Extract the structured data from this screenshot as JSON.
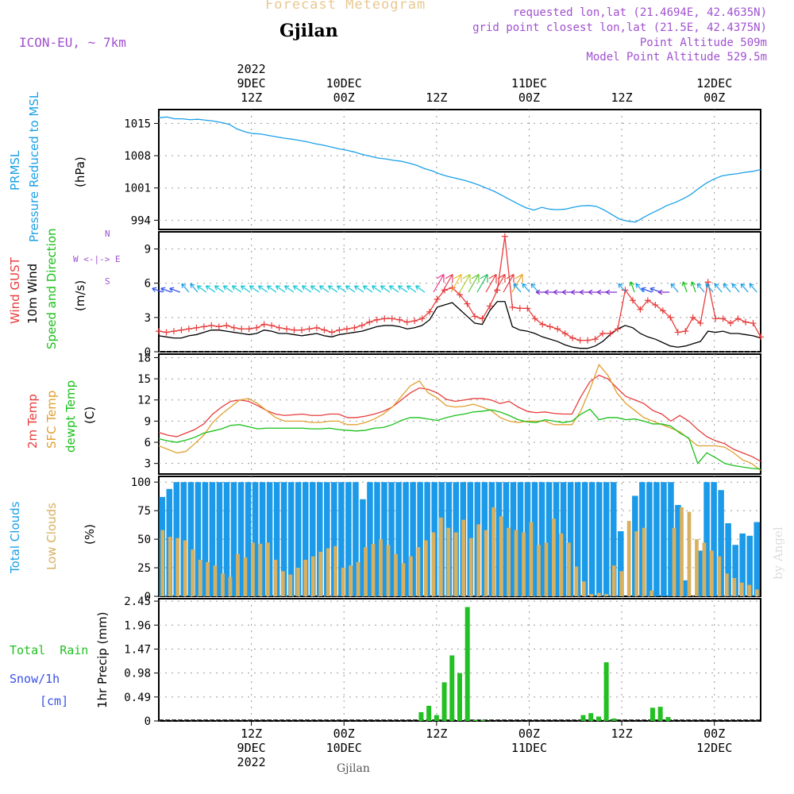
{
  "header": {
    "product_title": "Forecast Meteogram",
    "location": "Gjilan",
    "model": "ICON-EU, ~ 7km",
    "requested": "requested lon,lat (21.4694E, 42.4635N)",
    "grid_point": "grid point closest lon,lat (21.5E, 42.4375N)",
    "point_altitude": "Point Altitude 509m",
    "model_altitude": "Model Point Altitude 529.5m",
    "footer_location": "Gjilan",
    "watermark": "by Angel"
  },
  "colors": {
    "pressure": "#1aa0e8",
    "gust": "#e83c3c",
    "wind": "#000000",
    "wind_dir": "#19c019",
    "temp2m": "#e83c3c",
    "sfc_temp": "#e0a030",
    "dewpt": "#19c019",
    "total_clouds": "#1a9ae8",
    "low_clouds": "#d8b060",
    "rain": "#22c022",
    "snow": "#3a50e8",
    "meta": "#a050d0",
    "title_faint": "#e8c890"
  },
  "time_axis": {
    "top_labels": [
      {
        "t": 12,
        "lines": [
          "2022",
          "9DEC",
          "12Z"
        ]
      },
      {
        "t": 24,
        "lines": [
          "10DEC",
          "00Z"
        ]
      },
      {
        "t": 36,
        "lines": [
          "12Z"
        ]
      },
      {
        "t": 48,
        "lines": [
          "11DEC",
          "00Z"
        ]
      },
      {
        "t": 60,
        "lines": [
          "12Z"
        ]
      },
      {
        "t": 72,
        "lines": [
          "12DEC",
          "00Z"
        ]
      }
    ],
    "bottom_labels": [
      {
        "t": 12,
        "lines": [
          "12Z",
          "9DEC",
          "2022"
        ]
      },
      {
        "t": 24,
        "lines": [
          "00Z",
          "10DEC"
        ]
      },
      {
        "t": 36,
        "lines": [
          "12Z"
        ]
      },
      {
        "t": 48,
        "lines": [
          "00Z",
          "11DEC"
        ]
      },
      {
        "t": 60,
        "lines": [
          "12Z"
        ]
      },
      {
        "t": 72,
        "lines": [
          "00Z",
          "12DEC"
        ]
      }
    ]
  },
  "panels": {
    "pressure": {
      "label_lines": [
        "PRMSL",
        "Pressure Reduced to MSL"
      ],
      "unit": "(hPa)",
      "ticks": [
        "1015",
        "1008",
        "1001",
        "994"
      ]
    },
    "wind": {
      "label_gust": "Wind GUST",
      "label_wind": "10m Wind",
      "label_dir": "Speed and Direction",
      "unit": "(m/s)",
      "ticks": [
        "9",
        "6",
        "3",
        "0"
      ],
      "compass": [
        "N",
        "W <-|-> E",
        "S"
      ]
    },
    "temp": {
      "label_2m": "2m Temp",
      "label_sfc": "SFC Temp",
      "label_dew": "dewpt Temp",
      "unit": "(C)",
      "ticks": [
        "18",
        "15",
        "12",
        "9",
        "6",
        "3"
      ]
    },
    "clouds": {
      "label_total": "Total Clouds",
      "label_low": "Low Clouds",
      "unit": "(%)",
      "ticks": [
        "100",
        "75",
        "50",
        "25",
        "0"
      ]
    },
    "precip": {
      "label_total": "Total  Rain",
      "label_snow": "Snow/1h",
      "label_cm": "[cm]",
      "label_axis": "1hr Precip (mm)",
      "ticks": [
        "2.45",
        "1.96",
        "1.47",
        "0.98",
        "0.49",
        "0"
      ]
    }
  },
  "chart_data": {
    "type": "line",
    "x_unit": "hours from 9DEC 00Z 2022",
    "x_range": [
      0,
      78
    ],
    "pressure_hpa": {
      "ylim": [
        992,
        1018
      ],
      "x": [
        0,
        1,
        2,
        3,
        4,
        5,
        6,
        7,
        8,
        9,
        10,
        11,
        12,
        13,
        14,
        15,
        16,
        17,
        18,
        19,
        20,
        21,
        22,
        23,
        24,
        25,
        26,
        27,
        28,
        29,
        30,
        31,
        32,
        33,
        34,
        35,
        36,
        37,
        38,
        39,
        40,
        41,
        42,
        43,
        44,
        45,
        46,
        47,
        48,
        49,
        50,
        51,
        52,
        53,
        54,
        55,
        56,
        57,
        58,
        59,
        60,
        61,
        62,
        63,
        64,
        65,
        66,
        67,
        68,
        69,
        70,
        71,
        72,
        73,
        74,
        75,
        76,
        77
      ],
      "y": [
        1016.2,
        1016.4,
        1016.0,
        1016.0,
        1015.8,
        1015.9,
        1015.7,
        1015.5,
        1015.2,
        1014.8,
        1013.8,
        1013.2,
        1012.8,
        1012.7,
        1012.4,
        1012.1,
        1011.8,
        1011.6,
        1011.3,
        1011.0,
        1010.6,
        1010.3,
        1009.9,
        1009.5,
        1009.2,
        1008.8,
        1008.3,
        1007.9,
        1007.5,
        1007.3,
        1007.0,
        1006.8,
        1006.4,
        1005.9,
        1005.2,
        1004.7,
        1004.0,
        1003.5,
        1003.1,
        1002.7,
        1002.2,
        1001.6,
        1000.9,
        1000.2,
        999.3,
        998.4,
        997.5,
        996.7,
        996.2,
        996.8,
        996.4,
        996.3,
        996.4,
        996.8,
        997.1,
        997.2,
        997.0,
        996.2,
        995.2,
        994.2,
        993.8,
        993.6,
        994.6,
        995.5,
        996.3,
        997.2,
        997.8,
        998.6,
        999.5,
        1000.8,
        1002.0,
        1002.9,
        1003.6,
        1003.9,
        1004.1,
        1004.4,
        1004.6,
        1005.0
      ]
    },
    "wind_ms": {
      "ylim": [
        0,
        10.5
      ],
      "gust": [
        1.8,
        1.7,
        1.8,
        1.9,
        2.0,
        2.1,
        2.2,
        2.3,
        2.2,
        2.3,
        2.1,
        2.0,
        2.0,
        2.1,
        2.4,
        2.3,
        2.1,
        2.0,
        1.9,
        1.9,
        2.0,
        2.1,
        1.9,
        1.7,
        1.9,
        2.0,
        2.1,
        2.3,
        2.6,
        2.8,
        2.9,
        2.9,
        2.8,
        2.6,
        2.7,
        2.9,
        3.5,
        4.6,
        5.4,
        5.6,
        5.0,
        4.2,
        3.1,
        2.9,
        4.0,
        5.4,
        10.1,
        3.9,
        3.8,
        3.8,
        2.9,
        2.4,
        2.2,
        2.0,
        1.6,
        1.2,
        1.0,
        1.0,
        1.1,
        1.6,
        1.6,
        2.0,
        5.4,
        4.5,
        3.7,
        4.5,
        4.1,
        3.6,
        3.0,
        1.7,
        1.8,
        3.0,
        2.5,
        6.1,
        2.9,
        2.9,
        2.5,
        2.9,
        2.6,
        2.5,
        1.3
      ],
      "wind": [
        1.4,
        1.3,
        1.2,
        1.2,
        1.4,
        1.5,
        1.7,
        1.9,
        1.9,
        1.8,
        1.7,
        1.6,
        1.5,
        1.6,
        1.9,
        1.8,
        1.6,
        1.6,
        1.5,
        1.4,
        1.5,
        1.6,
        1.4,
        1.3,
        1.5,
        1.6,
        1.7,
        1.8,
        2.0,
        2.2,
        2.3,
        2.3,
        2.2,
        2.0,
        2.1,
        2.3,
        2.8,
        3.9,
        4.1,
        4.3,
        3.7,
        3.1,
        2.5,
        2.4,
        3.6,
        4.4,
        4.4,
        2.2,
        1.9,
        1.8,
        1.6,
        1.3,
        1.1,
        0.9,
        0.6,
        0.4,
        0.3,
        0.3,
        0.5,
        0.9,
        1.5,
        2.0,
        2.3,
        2.1,
        1.6,
        1.3,
        1.1,
        0.8,
        0.5,
        0.4,
        0.5,
        0.7,
        0.9,
        1.8,
        1.7,
        1.8,
        1.6,
        1.6,
        1.5,
        1.4,
        1.2
      ]
    },
    "wind_dir_arrow_colors": [
      "#3050e8",
      "#3050e8",
      "#3050e8",
      "#1aa0e8",
      "#1aa0e8",
      "#18c8d8",
      "#18c8d8",
      "#18c8d8",
      "#18c8d8",
      "#18c8d8",
      "#18c8d8",
      "#18c8d8",
      "#18c8d8",
      "#18c8d8",
      "#18c8d8",
      "#18c8d8",
      "#18c8d8",
      "#18c8d8",
      "#18c8d8",
      "#18c8d8",
      "#18c8d8",
      "#18c8d8",
      "#18c8d8",
      "#18c8d8",
      "#18c8d8",
      "#18c8d8",
      "#18c8d8",
      "#18c8d8",
      "#18c8d8",
      "#18c8d8",
      "#18c8d8",
      "#e83c8c",
      "#e83c5c",
      "#e8c030",
      "#b0d030",
      "#60c830",
      "#20c060",
      "#e83c3c",
      "#e83c3c",
      "#e83c3c",
      "#e8a020",
      "#1aa0e8",
      "#1aa0e8",
      "#1aa0e8",
      "#8030d0",
      "#8030d0",
      "#8030d0",
      "#8030d0",
      "#8030d0",
      "#8030d0",
      "#8030d0",
      "#8030d0",
      "#8030d0",
      "#1aa0e8",
      "#19c019",
      "#1aa0e8",
      "#3050e8",
      "#3050e8",
      "#8030d0",
      "#1aa0e8",
      "#19c019",
      "#19c019",
      "#1aa0e8",
      "#1aa0e8",
      "#1aa0e8",
      "#1aa0e8",
      "#1aa0e8",
      "#1aa0e8",
      "#1aa0e8"
    ],
    "temperature_c": {
      "ylim": [
        1.5,
        18.5
      ],
      "t2m": [
        7.4,
        7.0,
        6.8,
        7.3,
        7.8,
        8.6,
        10.0,
        11.0,
        11.8,
        12.0,
        11.8,
        11.2,
        10.5,
        10.0,
        9.8,
        9.9,
        10.0,
        9.8,
        9.8,
        10.0,
        10.0,
        9.5,
        9.5,
        9.7,
        10.0,
        10.4,
        11.0,
        12.0,
        13.0,
        13.7,
        13.5,
        13.0,
        12.1,
        11.8,
        12.0,
        12.2,
        12.2,
        12.0,
        11.5,
        11.8,
        11.0,
        10.4,
        10.2,
        10.3,
        10.1,
        10.0,
        10.0,
        12.5,
        14.6,
        15.5,
        15.0,
        13.7,
        12.5,
        12.0,
        11.5,
        10.5,
        10.0,
        9.0,
        9.8,
        9.0,
        7.8,
        6.8,
        6.2,
        5.8,
        5.0,
        4.5,
        4.0,
        3.3
      ],
      "sfc": [
        5.5,
        5.0,
        4.5,
        4.7,
        5.8,
        7.0,
        8.8,
        10.0,
        11.0,
        12.0,
        12.2,
        11.5,
        10.5,
        9.5,
        9.0,
        9.0,
        9.0,
        8.8,
        8.8,
        9.0,
        9.0,
        8.5,
        8.5,
        8.8,
        9.3,
        10.0,
        11.0,
        12.5,
        14.0,
        14.7,
        13.0,
        12.3,
        11.2,
        11.0,
        11.1,
        11.4,
        11.0,
        10.5,
        9.5,
        9.0,
        8.8,
        9.0,
        9.0,
        9.0,
        8.5,
        8.5,
        8.5,
        10.5,
        13.5,
        17.0,
        15.5,
        13.0,
        11.5,
        10.5,
        9.5,
        9.0,
        8.5,
        8.0,
        7.5,
        6.5,
        5.5,
        5.5,
        5.5,
        5.3,
        4.5,
        3.5,
        3.0,
        2.0
      ],
      "dewpt": [
        6.5,
        6.2,
        6.0,
        6.3,
        6.7,
        7.3,
        7.6,
        7.9,
        8.4,
        8.5,
        8.2,
        7.9,
        8.0,
        8.0,
        8.0,
        8.0,
        8.0,
        7.9,
        7.9,
        8.0,
        7.8,
        7.7,
        7.6,
        7.7,
        8.0,
        8.1,
        8.5,
        9.1,
        9.5,
        9.5,
        9.3,
        9.1,
        9.5,
        9.8,
        10.0,
        10.3,
        10.4,
        10.6,
        10.3,
        9.8,
        9.2,
        8.9,
        8.8,
        9.2,
        9.0,
        8.8,
        9.0,
        10.0,
        10.7,
        9.2,
        9.5,
        9.5,
        9.2,
        9.3,
        9.0,
        8.6,
        8.6,
        8.3,
        7.3,
        6.6,
        3.0,
        4.5,
        3.8,
        3.0,
        2.7,
        2.5,
        2.3,
        2.2
      ]
    },
    "clouds_pct": {
      "ylim": [
        0,
        105
      ],
      "total": [
        87,
        94,
        100,
        100,
        100,
        100,
        100,
        100,
        100,
        100,
        100,
        100,
        100,
        100,
        100,
        100,
        100,
        100,
        100,
        100,
        100,
        100,
        100,
        100,
        100,
        100,
        100,
        100,
        85,
        100,
        100,
        100,
        100,
        100,
        100,
        100,
        100,
        100,
        100,
        100,
        100,
        100,
        100,
        100,
        100,
        100,
        100,
        100,
        100,
        100,
        100,
        100,
        100,
        100,
        100,
        100,
        100,
        100,
        100,
        100,
        100,
        100,
        100,
        100,
        57,
        0,
        88,
        100,
        100,
        100,
        100,
        100,
        80,
        14,
        0,
        40,
        100,
        100,
        93,
        64,
        45,
        55,
        53,
        65
      ],
      "low": [
        58,
        52,
        51,
        49,
        41,
        32,
        30,
        27,
        20,
        17,
        37,
        34,
        47,
        46,
        47,
        32,
        22,
        19,
        25,
        32,
        35,
        39,
        42,
        44,
        25,
        27,
        30,
        43,
        46,
        50,
        45,
        37,
        29,
        35,
        43,
        49,
        56,
        69,
        60,
        56,
        67,
        51,
        63,
        58,
        78,
        70,
        60,
        58,
        56,
        65,
        45,
        47,
        68,
        55,
        47,
        26,
        13,
        2,
        3,
        2,
        27,
        22,
        66,
        57,
        60,
        5,
        0,
        0,
        60,
        78,
        74,
        50,
        47,
        40,
        35,
        20,
        16,
        12,
        10,
        6
      ],
      "bar_count": 80
    },
    "precip_mm": {
      "ylim": [
        0,
        2.5
      ],
      "rain_hours": [
        34,
        35,
        36,
        37,
        38,
        39,
        40,
        41,
        42,
        55,
        56,
        57,
        58,
        59,
        64,
        65,
        66
      ],
      "rain": [
        0.18,
        0.31,
        0.12,
        0.79,
        1.34,
        0.98,
        2.33,
        0.02,
        0.02,
        0.12,
        0.16,
        0.09,
        1.2,
        0.05,
        0.27,
        0.29,
        0.08
      ],
      "snow": []
    }
  }
}
